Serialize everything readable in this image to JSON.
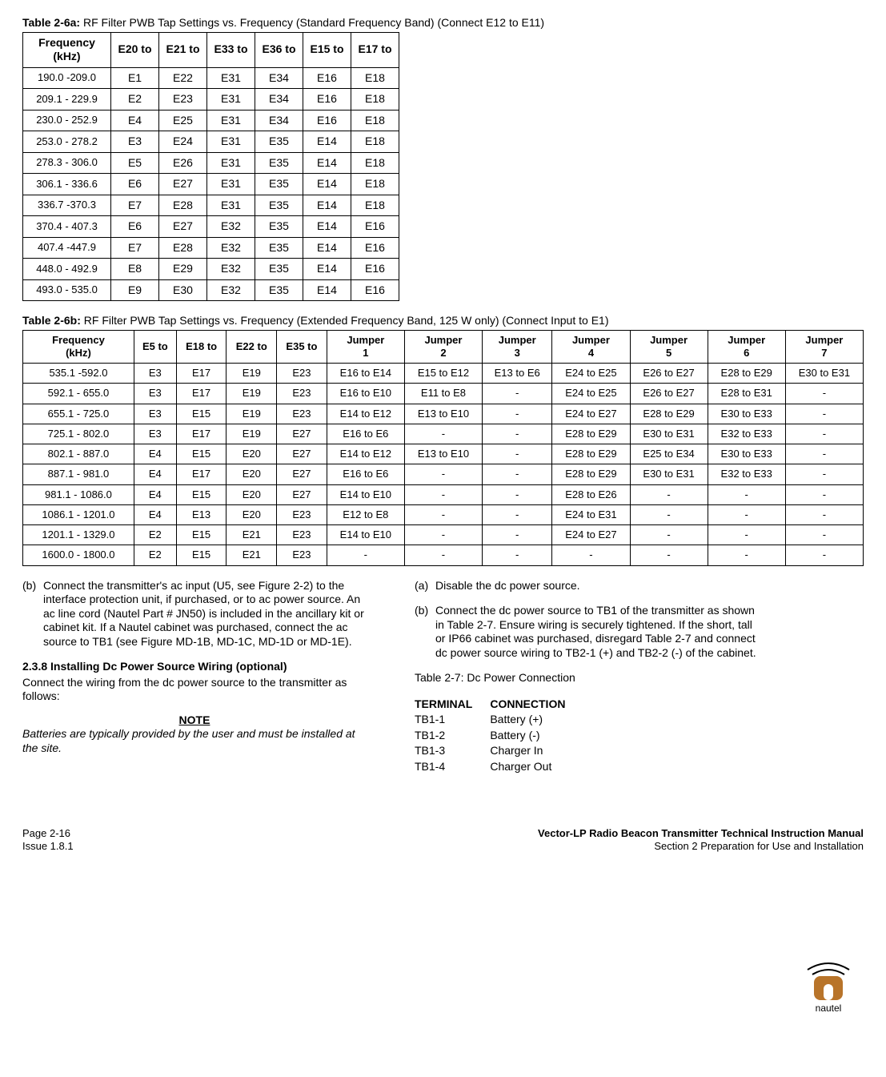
{
  "table6a": {
    "label": "Table 2-6a:",
    "title": "RF Filter PWB Tap Settings vs. Frequency (Standard Frequency Band) (Connect E12 to E11)",
    "columns": [
      "Frequency (kHz)",
      "E20 to",
      "E21 to",
      "E33 to",
      "E36 to",
      "E15 to",
      "E17 to"
    ],
    "rows": [
      [
        "190.0 -209.0",
        "E1",
        "E22",
        "E31",
        "E34",
        "E16",
        "E18"
      ],
      [
        "209.1 - 229.9",
        "E2",
        "E23",
        "E31",
        "E34",
        "E16",
        "E18"
      ],
      [
        "230.0 - 252.9",
        "E4",
        "E25",
        "E31",
        "E34",
        "E16",
        "E18"
      ],
      [
        "253.0 - 278.2",
        "E3",
        "E24",
        "E31",
        "E35",
        "E14",
        "E18"
      ],
      [
        "278.3 - 306.0",
        "E5",
        "E26",
        "E31",
        "E35",
        "E14",
        "E18"
      ],
      [
        "306.1 - 336.6",
        "E6",
        "E27",
        "E31",
        "E35",
        "E14",
        "E18"
      ],
      [
        "336.7 -370.3",
        "E7",
        "E28",
        "E31",
        "E35",
        "E14",
        "E18"
      ],
      [
        "370.4 - 407.3",
        "E6",
        "E27",
        "E32",
        "E35",
        "E14",
        "E16"
      ],
      [
        "407.4 -447.9",
        "E7",
        "E28",
        "E32",
        "E35",
        "E14",
        "E16"
      ],
      [
        "448.0 - 492.9",
        "E8",
        "E29",
        "E32",
        "E35",
        "E14",
        "E16"
      ],
      [
        "493.0 - 535.0",
        "E9",
        "E30",
        "E32",
        "E35",
        "E14",
        "E16"
      ]
    ]
  },
  "table6b": {
    "label": "Table 2-6b:",
    "title": "RF Filter PWB Tap Settings vs. Frequency (Extended Frequency Band, 125 W only) (Connect Input to E1)",
    "columns": [
      "Frequency (kHz)",
      "E5 to",
      "E18 to",
      "E22 to",
      "E35 to",
      "Jumper 1",
      "Jumper 2",
      "Jumper 3",
      "Jumper 4",
      "Jumper 5",
      "Jumper 6",
      "Jumper 7"
    ],
    "rows": [
      [
        "535.1 -592.0",
        "E3",
        "E17",
        "E19",
        "E23",
        "E16 to E14",
        "E15 to E12",
        "E13 to E6",
        "E24 to E25",
        "E26 to E27",
        "E28 to E29",
        "E30 to E31"
      ],
      [
        "592.1 - 655.0",
        "E3",
        "E17",
        "E19",
        "E23",
        "E16 to E10",
        "E11 to E8",
        "-",
        "E24 to E25",
        "E26 to E27",
        "E28 to E31",
        "-"
      ],
      [
        "655.1 - 725.0",
        "E3",
        "E15",
        "E19",
        "E23",
        "E14 to E12",
        "E13 to E10",
        "-",
        "E24 to E27",
        "E28 to E29",
        "E30 to E33",
        "-"
      ],
      [
        "725.1 - 802.0",
        "E3",
        "E17",
        "E19",
        "E27",
        "E16 to E6",
        "-",
        "-",
        "E28 to E29",
        "E30 to E31",
        "E32 to E33",
        "-"
      ],
      [
        "802.1 - 887.0",
        "E4",
        "E15",
        "E20",
        "E27",
        "E14 to E12",
        "E13 to E10",
        "-",
        "E28 to E29",
        "E25 to E34",
        "E30 to E33",
        "-"
      ],
      [
        "887.1 - 981.0",
        "E4",
        "E17",
        "E20",
        "E27",
        "E16 to E6",
        "-",
        "-",
        "E28 to E29",
        "E30 to E31",
        "E32 to E33",
        "-"
      ],
      [
        "981.1 - 1086.0",
        "E4",
        "E15",
        "E20",
        "E27",
        "E14 to E10",
        "-",
        "-",
        "E28 to E26",
        "-",
        "-",
        "-"
      ],
      [
        "1086.1 - 1201.0",
        "E4",
        "E13",
        "E20",
        "E23",
        "E12 to E8",
        "-",
        "-",
        "E24 to E31",
        "-",
        "-",
        "-"
      ],
      [
        "1201.1 - 1329.0",
        "E2",
        "E15",
        "E21",
        "E23",
        "E14 to E10",
        "-",
        "-",
        "E24 to E27",
        "-",
        "-",
        "-"
      ],
      [
        "1600.0 - 1800.0",
        "E2",
        "E15",
        "E21",
        "E23",
        "-",
        "-",
        "-",
        "-",
        "-",
        "-",
        "-"
      ]
    ]
  },
  "left_col": {
    "b_tag": "(b)",
    "b_text": "Connect the transmitter's ac input (U5, see Figure 2-2) to the interface protection unit, if purchased, or to ac power source. An ac line cord (Nautel Part # JN50) is included in the ancillary kit or cabinet kit. If a Nautel cabinet was purchased, connect the ac source to TB1 (see Figure MD-1B, MD-1C, MD-1D or MD-1E).",
    "sec_num": "2.3.8 Installing Dc Power Source Wiring (optional)",
    "sec_body": "Connect the wiring from the dc power source to the transmitter as follows:",
    "note_head": "NOTE",
    "note_body": "Batteries are typically provided by the user and must be installed at the site."
  },
  "right_col": {
    "a_tag": "(a)",
    "a_text": "Disable the dc power source.",
    "b_tag": "(b)",
    "b_text": "Connect the dc power source to TB1 of the transmitter as shown in Table 2-7. Ensure wiring is securely tightened. If the short, tall or IP66 cabinet was purchased, disregard Table 2-7 and connect dc power source wiring to TB2-1 (+) and TB2-2 (-) of the cabinet.",
    "t27_label": "Table 2-7:",
    "t27_title": "Dc Power Connection",
    "dc": {
      "h1": "TERMINAL",
      "h2": "CONNECTION",
      "rows": [
        [
          "TB1-1",
          "Battery (+)"
        ],
        [
          "TB1-2",
          "Battery (-)"
        ],
        [
          "TB1-3",
          "Charger In"
        ],
        [
          "TB1-4",
          "Charger Out"
        ]
      ]
    }
  },
  "logo": {
    "text": "nautel",
    "brand_color": "#b8742a"
  },
  "footer": {
    "page": "Page 2-16",
    "issue": "Issue 1.8.1",
    "manual": "Vector-LP Radio Beacon Transmitter Technical Instruction Manual",
    "section": "Section 2 Preparation for Use and Installation"
  }
}
